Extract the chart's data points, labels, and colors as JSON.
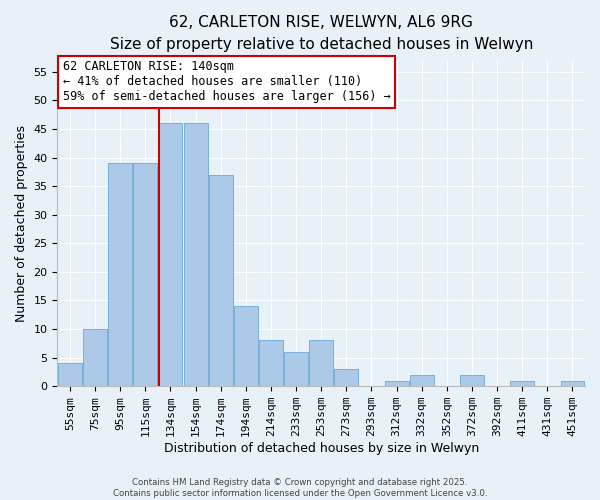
{
  "title": "62, CARLETON RISE, WELWYN, AL6 9RG",
  "subtitle": "Size of property relative to detached houses in Welwyn",
  "xlabel": "Distribution of detached houses by size in Welwyn",
  "ylabel": "Number of detached properties",
  "bar_labels": [
    "55sqm",
    "75sqm",
    "95sqm",
    "115sqm",
    "134sqm",
    "154sqm",
    "174sqm",
    "194sqm",
    "214sqm",
    "233sqm",
    "253sqm",
    "273sqm",
    "293sqm",
    "312sqm",
    "332sqm",
    "352sqm",
    "372sqm",
    "392sqm",
    "411sqm",
    "431sqm",
    "451sqm"
  ],
  "bar_values": [
    4,
    10,
    39,
    39,
    46,
    46,
    37,
    14,
    8,
    6,
    8,
    3,
    0,
    1,
    2,
    0,
    2,
    0,
    1,
    0,
    1
  ],
  "bar_color": "#adc9e8",
  "bar_edge_color": "#6aaad4",
  "reference_line_index": 4,
  "reference_line_color": "#cc0000",
  "ylim": [
    0,
    57
  ],
  "yticks": [
    0,
    5,
    10,
    15,
    20,
    25,
    30,
    35,
    40,
    45,
    50,
    55
  ],
  "annotation_title": "62 CARLETON RISE: 140sqm",
  "annotation_line1": "← 41% of detached houses are smaller (110)",
  "annotation_line2": "59% of semi-detached houses are larger (156) →",
  "annotation_box_color": "#ffffff",
  "annotation_box_edge": "#cc0000",
  "bg_color": "#e8f0f8",
  "footer_line1": "Contains HM Land Registry data © Crown copyright and database right 2025.",
  "footer_line2": "Contains public sector information licensed under the Open Government Licence v3.0.",
  "title_fontsize": 11,
  "subtitle_fontsize": 9.5,
  "axis_label_fontsize": 9,
  "tick_fontsize": 8,
  "annotation_fontsize": 8.5
}
